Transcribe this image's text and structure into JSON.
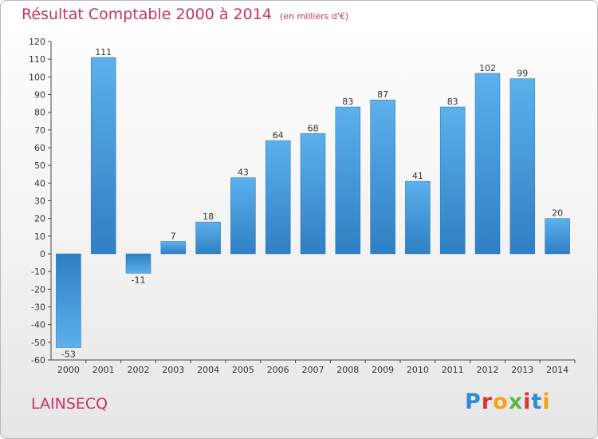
{
  "chart_data": {
    "type": "bar",
    "title": "Résultat Comptable 2000 à 2014",
    "subtitle": "(en milliers d'€)",
    "categories": [
      "2000",
      "2001",
      "2002",
      "2003",
      "2004",
      "2005",
      "2006",
      "2007",
      "2008",
      "2009",
      "2010",
      "2011",
      "2012",
      "2013",
      "2014"
    ],
    "values": [
      -53,
      111,
      -11,
      7,
      18,
      43,
      64,
      68,
      83,
      87,
      41,
      83,
      102,
      99,
      20
    ],
    "value_labels": [
      "-53",
      "111",
      "-11",
      "7",
      "18",
      "43",
      "64",
      "68",
      "83",
      "87",
      "41",
      "83",
      "102",
      "99",
      "20"
    ],
    "ylim": [
      -60,
      120
    ],
    "yticks": [
      120,
      110,
      100,
      90,
      80,
      70,
      60,
      50,
      40,
      30,
      20,
      10,
      0,
      -10,
      -20,
      -30,
      -40,
      -50,
      -60
    ],
    "xlabel": "",
    "ylabel": "",
    "grid": false,
    "bar_color": "#4a9be0"
  },
  "commune_name": "LAINSECQ",
  "logo": {
    "letters": [
      "P",
      "r",
      "o",
      "x",
      "i",
      "t",
      "i"
    ],
    "colors": [
      "#2e8bd8",
      "#e2322d",
      "#f3a31b",
      "#58b947",
      "#e2322d",
      "#2e8bd8",
      "#f3a31b"
    ]
  }
}
